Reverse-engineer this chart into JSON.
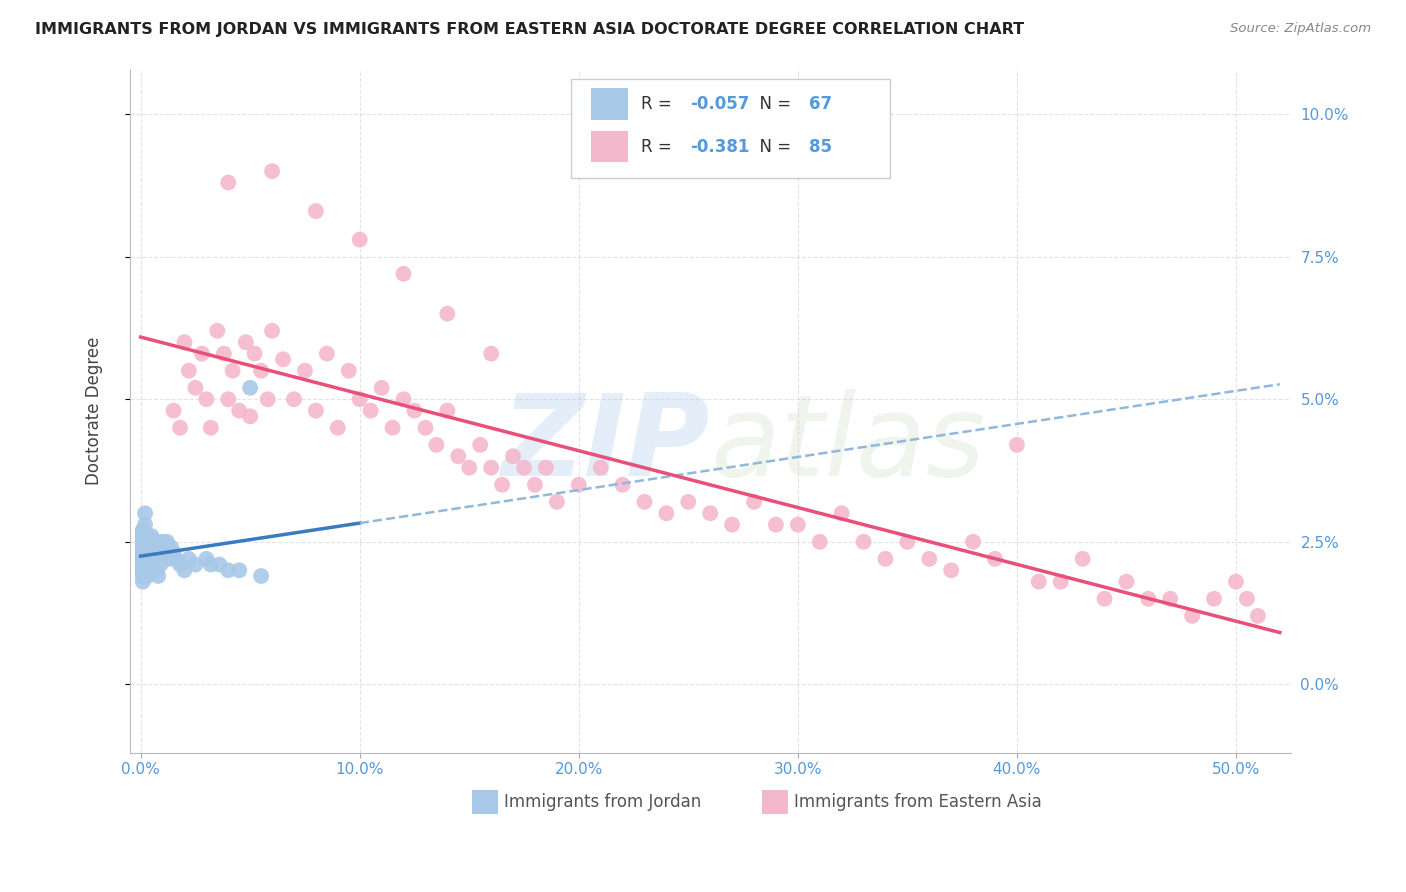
{
  "title": "IMMIGRANTS FROM JORDAN VS IMMIGRANTS FROM EASTERN ASIA DOCTORATE DEGREE CORRELATION CHART",
  "source": "Source: ZipAtlas.com",
  "ylabel": "Doctorate Degree",
  "legend_label1": "Immigrants from Jordan",
  "legend_label2": "Immigrants from Eastern Asia",
  "r1": -0.057,
  "n1": 67,
  "r2": -0.381,
  "n2": 85,
  "xlim": [
    -0.005,
    0.525
  ],
  "ylim": [
    -0.012,
    0.108
  ],
  "xtick_vals": [
    0.0,
    0.1,
    0.2,
    0.3,
    0.4,
    0.5
  ],
  "xtick_labels": [
    "0.0%",
    "10.0%",
    "20.0%",
    "30.0%",
    "40.0%",
    "50.0%"
  ],
  "ytick_vals": [
    0.0,
    0.025,
    0.05,
    0.075,
    0.1
  ],
  "ytick_labels": [
    "0.0%",
    "2.5%",
    "5.0%",
    "7.5%",
    "10.0%"
  ],
  "scatter1_color": "#a8c8e8",
  "scatter2_color": "#f4b8cc",
  "line1_color": "#3a7abf",
  "line2_color": "#e8507a",
  "line_dash_color": "#90b8dc",
  "grid_color": "#cccccc",
  "title_color": "#222222",
  "source_color": "#888888",
  "tick_color": "#5599dd",
  "jordan_x": [
    0.001,
    0.001,
    0.001,
    0.001,
    0.001,
    0.001,
    0.001,
    0.001,
    0.001,
    0.001,
    0.001,
    0.001,
    0.001,
    0.001,
    0.001,
    0.001,
    0.001,
    0.001,
    0.001,
    0.001,
    0.002,
    0.002,
    0.002,
    0.002,
    0.002,
    0.002,
    0.002,
    0.002,
    0.002,
    0.002,
    0.003,
    0.003,
    0.003,
    0.003,
    0.003,
    0.003,
    0.004,
    0.004,
    0.004,
    0.005,
    0.005,
    0.006,
    0.006,
    0.007,
    0.007,
    0.008,
    0.008,
    0.009,
    0.009,
    0.01,
    0.011,
    0.012,
    0.013,
    0.014,
    0.015,
    0.016,
    0.018,
    0.02,
    0.022,
    0.025,
    0.03,
    0.032,
    0.036,
    0.04,
    0.045,
    0.05,
    0.055
  ],
  "jordan_y": [
    0.022,
    0.023,
    0.024,
    0.025,
    0.026,
    0.027,
    0.022,
    0.021,
    0.02,
    0.019,
    0.023,
    0.024,
    0.025,
    0.022,
    0.021,
    0.026,
    0.027,
    0.02,
    0.019,
    0.018,
    0.023,
    0.024,
    0.025,
    0.022,
    0.021,
    0.026,
    0.02,
    0.019,
    0.03,
    0.028,
    0.023,
    0.024,
    0.021,
    0.026,
    0.02,
    0.019,
    0.023,
    0.024,
    0.02,
    0.024,
    0.026,
    0.023,
    0.021,
    0.025,
    0.02,
    0.023,
    0.019,
    0.024,
    0.021,
    0.025,
    0.023,
    0.025,
    0.022,
    0.024,
    0.023,
    0.022,
    0.021,
    0.02,
    0.022,
    0.021,
    0.022,
    0.021,
    0.021,
    0.02,
    0.02,
    0.052,
    0.019
  ],
  "eastern_x": [
    0.015,
    0.018,
    0.02,
    0.022,
    0.025,
    0.028,
    0.03,
    0.032,
    0.035,
    0.038,
    0.04,
    0.042,
    0.045,
    0.048,
    0.05,
    0.052,
    0.055,
    0.058,
    0.06,
    0.065,
    0.07,
    0.075,
    0.08,
    0.085,
    0.09,
    0.095,
    0.1,
    0.105,
    0.11,
    0.115,
    0.12,
    0.125,
    0.13,
    0.135,
    0.14,
    0.145,
    0.15,
    0.155,
    0.16,
    0.165,
    0.17,
    0.175,
    0.18,
    0.185,
    0.19,
    0.2,
    0.21,
    0.22,
    0.23,
    0.24,
    0.25,
    0.26,
    0.27,
    0.28,
    0.29,
    0.3,
    0.31,
    0.32,
    0.33,
    0.34,
    0.35,
    0.36,
    0.37,
    0.38,
    0.39,
    0.4,
    0.41,
    0.42,
    0.43,
    0.44,
    0.45,
    0.46,
    0.47,
    0.48,
    0.49,
    0.5,
    0.505,
    0.51,
    0.04,
    0.06,
    0.08,
    0.1,
    0.12,
    0.14,
    0.16
  ],
  "eastern_y": [
    0.048,
    0.045,
    0.06,
    0.055,
    0.052,
    0.058,
    0.05,
    0.045,
    0.062,
    0.058,
    0.05,
    0.055,
    0.048,
    0.06,
    0.047,
    0.058,
    0.055,
    0.05,
    0.062,
    0.057,
    0.05,
    0.055,
    0.048,
    0.058,
    0.045,
    0.055,
    0.05,
    0.048,
    0.052,
    0.045,
    0.05,
    0.048,
    0.045,
    0.042,
    0.048,
    0.04,
    0.038,
    0.042,
    0.038,
    0.035,
    0.04,
    0.038,
    0.035,
    0.038,
    0.032,
    0.035,
    0.038,
    0.035,
    0.032,
    0.03,
    0.032,
    0.03,
    0.028,
    0.032,
    0.028,
    0.028,
    0.025,
    0.03,
    0.025,
    0.022,
    0.025,
    0.022,
    0.02,
    0.025,
    0.022,
    0.042,
    0.018,
    0.018,
    0.022,
    0.015,
    0.018,
    0.015,
    0.015,
    0.012,
    0.015,
    0.018,
    0.015,
    0.012,
    0.088,
    0.09,
    0.083,
    0.078,
    0.072,
    0.065,
    0.058
  ]
}
